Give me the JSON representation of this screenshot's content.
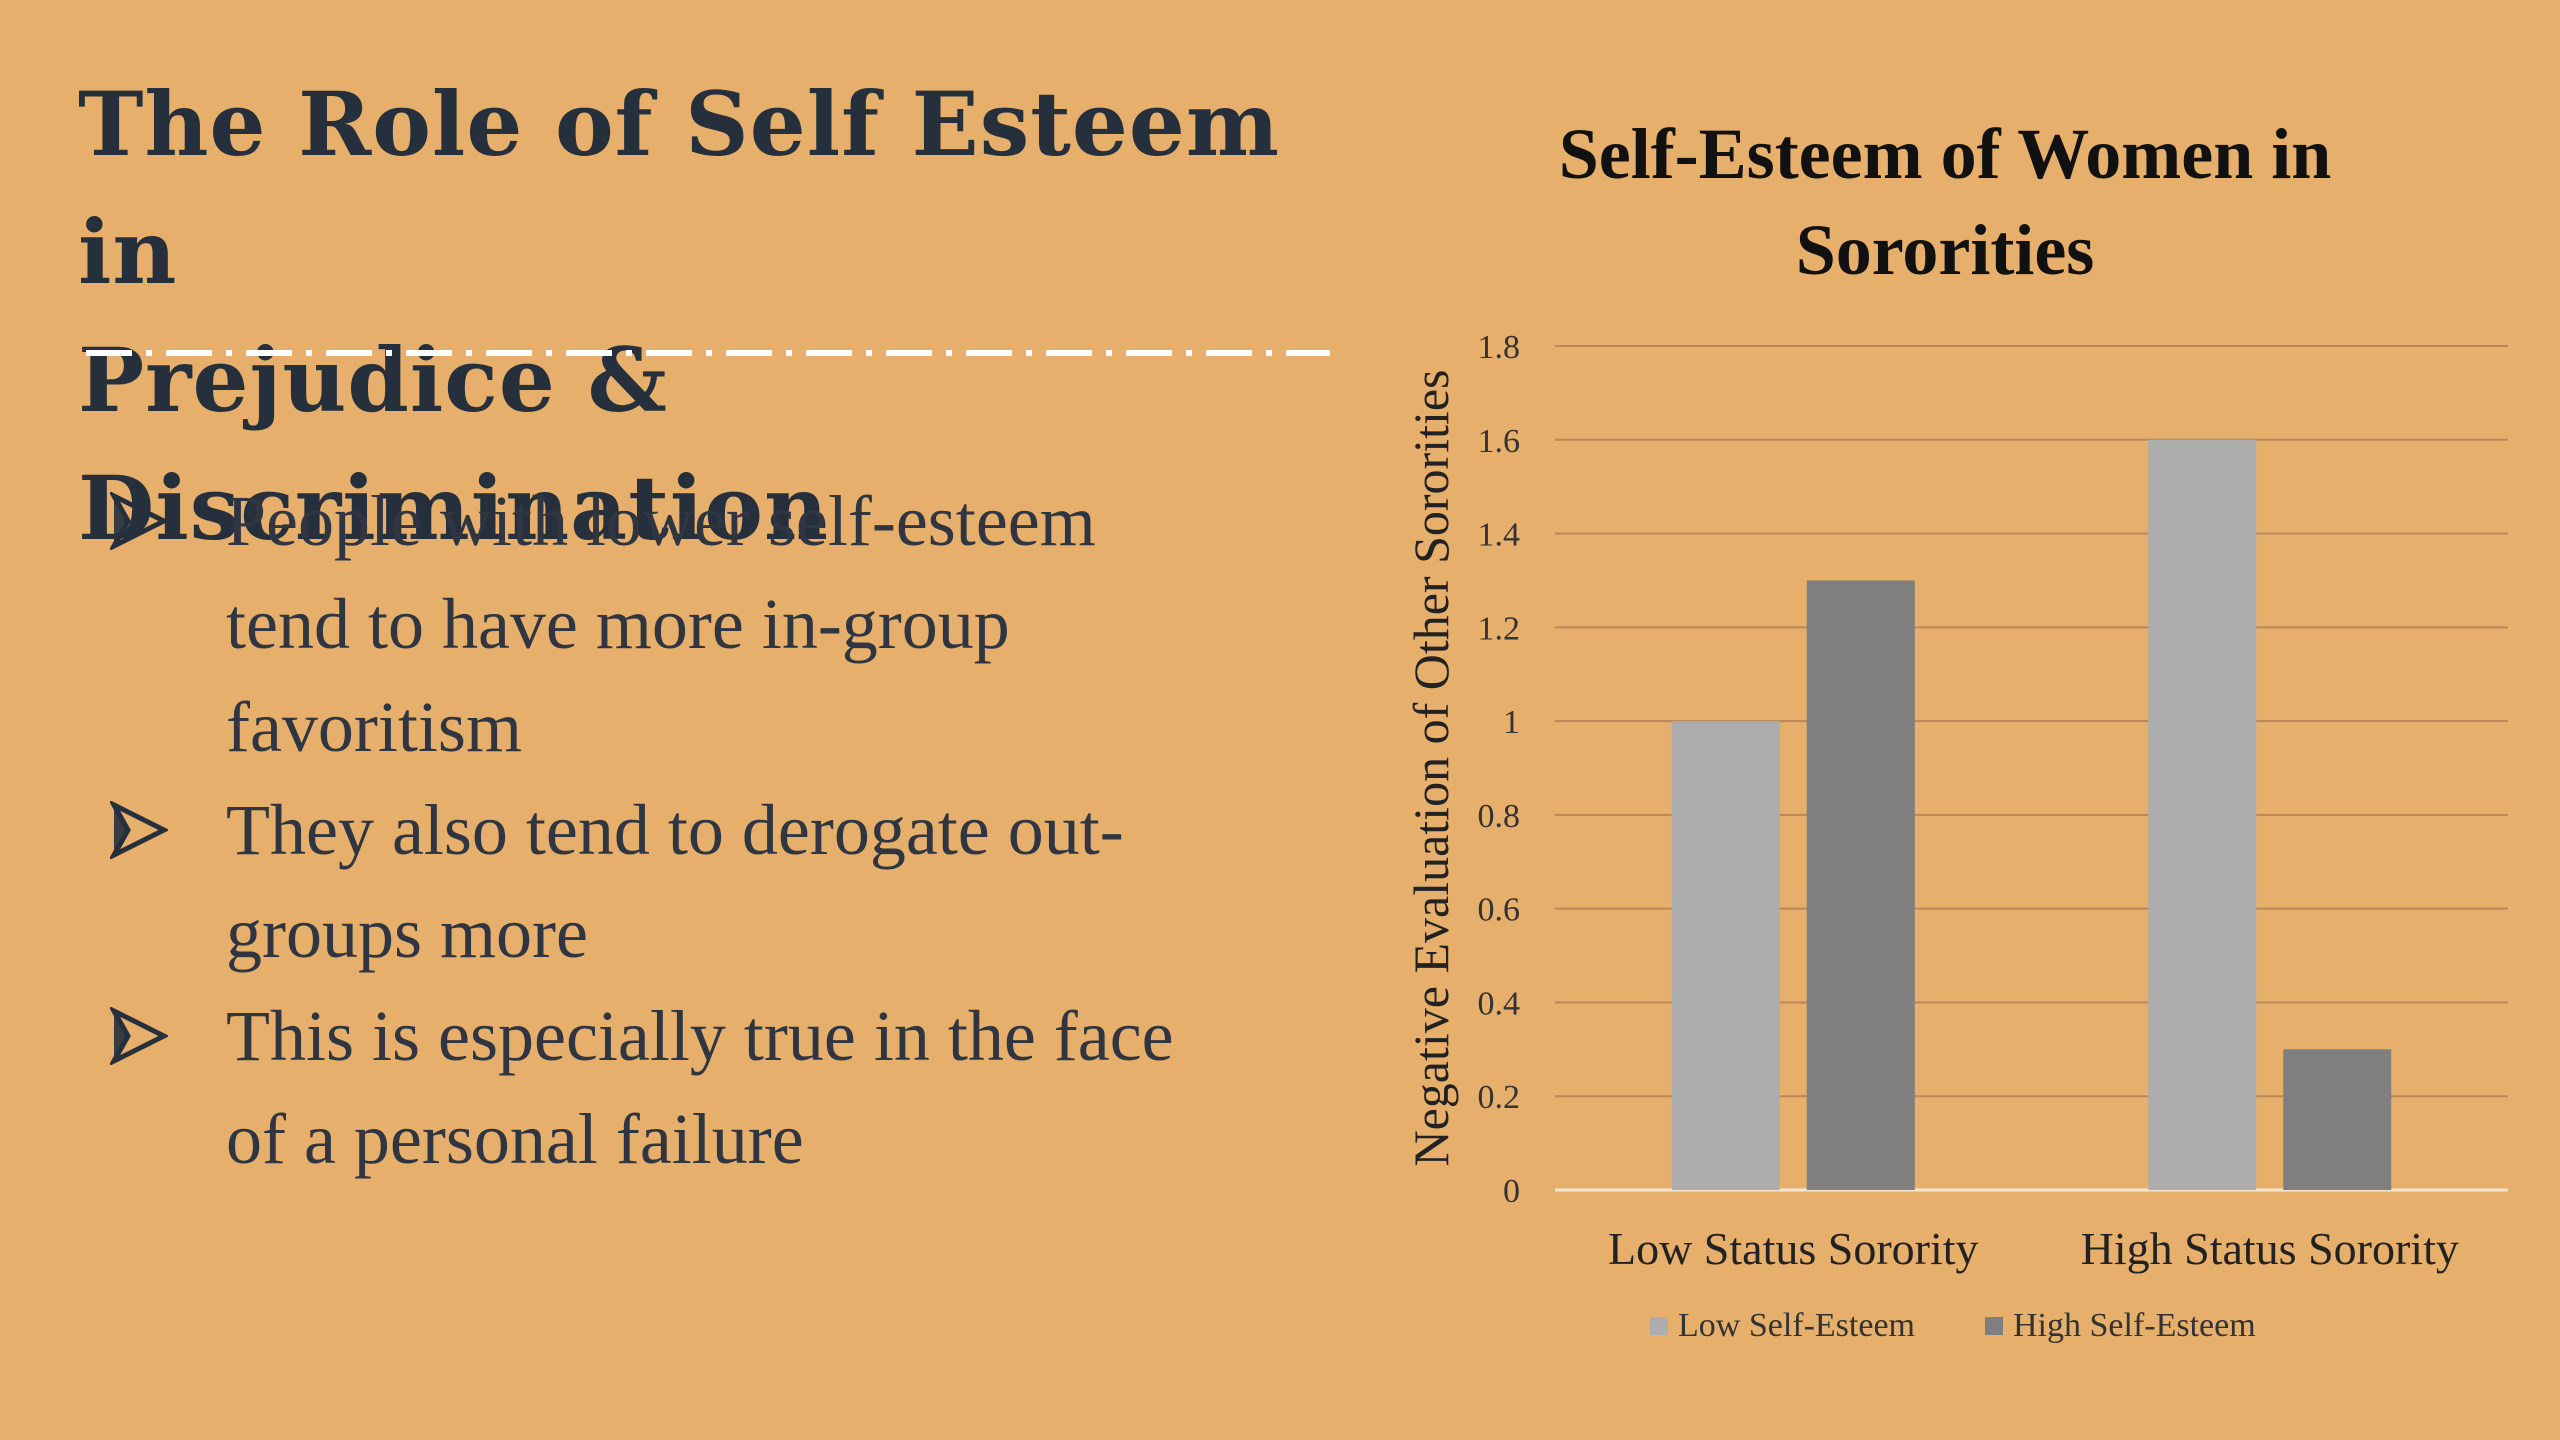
{
  "slide": {
    "title_line1": "The Role of Self Esteem in",
    "title_line2": "Prejudice & Discrimination",
    "bullets": [
      {
        "lines": [
          "People with lower self-esteem",
          "tend to have more in-group",
          "favoritism"
        ]
      },
      {
        "lines": [
          "They also tend to derogate out-",
          "groups more"
        ]
      },
      {
        "lines": [
          "This is especially true in the face",
          "of a personal failure"
        ]
      }
    ],
    "bullet_icon": "arrow-bullet-icon",
    "colors": {
      "background": "#E6AF6B",
      "text": "#2A3340",
      "divider": "#FFFFFF"
    }
  },
  "chart_data": {
    "type": "bar",
    "title": "Self-Esteem of Women in Sororities",
    "ylabel": "Negative Evaluation of Other Sororities",
    "xlabel": "",
    "categories": [
      "Low Status Sorority",
      "High Status Sorority"
    ],
    "series": [
      {
        "name": "Low Self-Esteem",
        "values": [
          1.0,
          1.6
        ],
        "color": "#ADADAD"
      },
      {
        "name": "High Self-Esteem",
        "values": [
          1.3,
          0.3
        ],
        "color": "#7F7F7F"
      }
    ],
    "ylim": [
      0,
      1.8
    ],
    "yticks": [
      "0",
      "0.2",
      "0.4",
      "0.6",
      "0.8",
      "1",
      "1.2",
      "1.4",
      "1.6",
      "1.8"
    ],
    "grid": true,
    "legend": "bottom"
  }
}
